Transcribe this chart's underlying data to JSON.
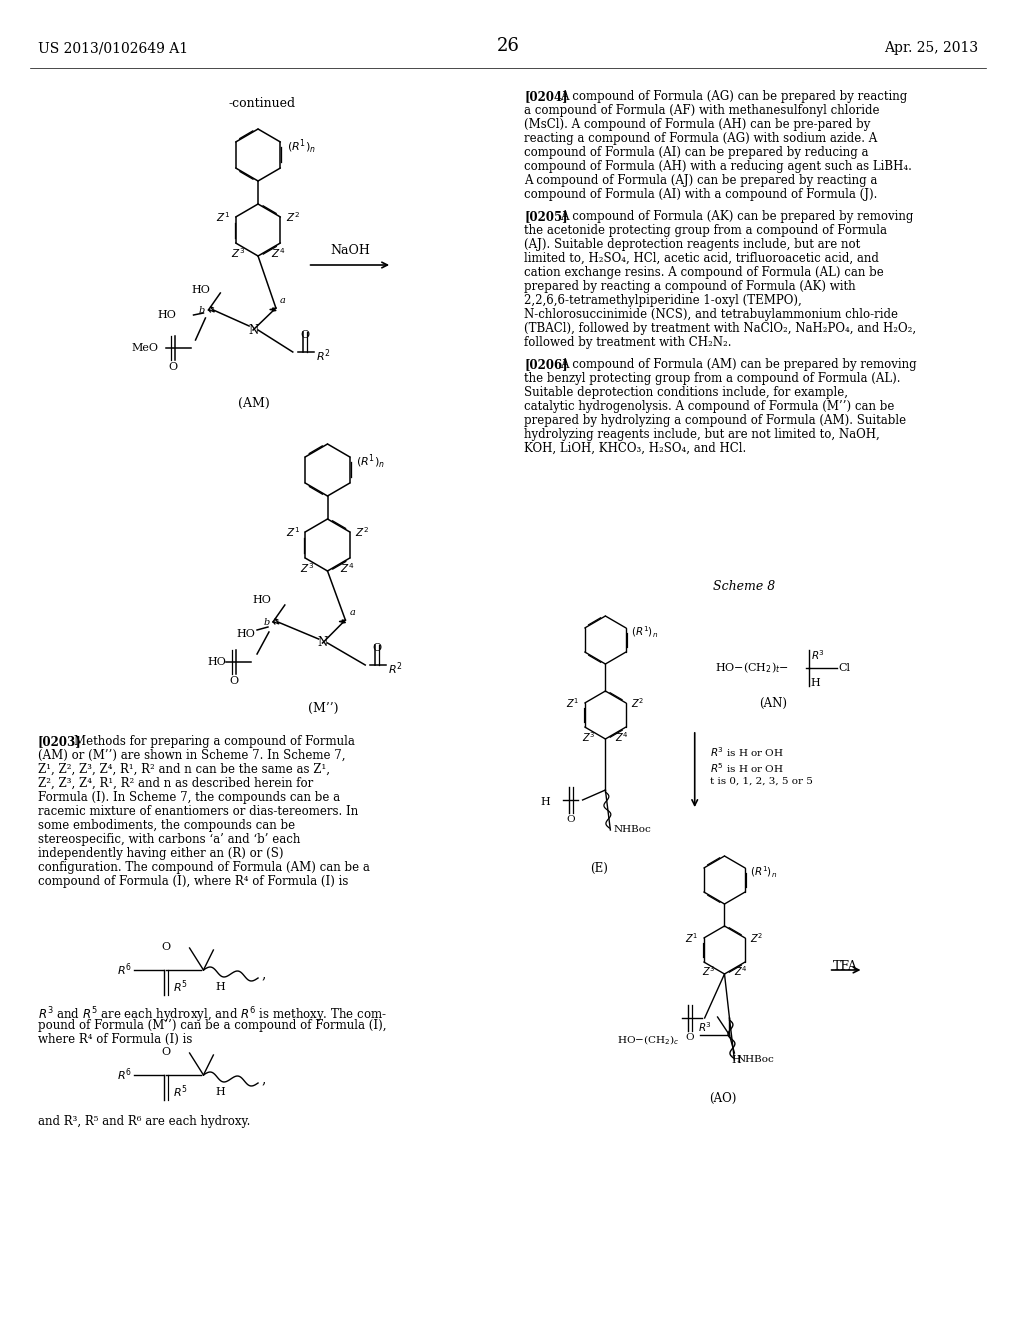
{
  "background_color": "#ffffff",
  "header_left": "US 2013/0102649 A1",
  "header_right": "Apr. 25, 2013",
  "page_number": "26",
  "continued_label": "-continued",
  "naoh_label": "NaOH",
  "am_label": "(AM)",
  "mprime_label": "(M’’)",
  "scheme8_label": "Scheme 8",
  "an_label": "(AN)",
  "e_label": "(E)",
  "ao_label": "(AO)",
  "tfa_label": "TFA",
  "para_0204": "[0204] A compound of Formula (AG) can be prepared by reacting a compound of Formula (AF) with methanesulfonyl chloride (MsCl). A compound of Formula (AH) can be pre-pared by reacting a compound of Formula (AG) with sodium azide. A compound of Formula (AI) can be prepared by reducing a compound of Formula (AH) with a reducing agent such as LiBH₄. A compound of Formula (AJ) can be prepared by reacting a compound of Formula (AI) with a compound of Formula (J).",
  "para_0205": "[0205] A compound of Formula (AK) can be prepared by removing the acetonide protecting group from a compound of Formula (AJ). Suitable deprotection reagents include, but are not limited to, H₂SO₄, HCl, acetic acid, trifluoroacetic acid, and cation exchange resins. A compound of Formula (AL) can be prepared by reacting a compound of Formula (AK) with  2,2,6,6-tetramethylpiperidine  1-oxyl  (TEMPO), N-chlorosuccinimide (NCS), and tetrabuylammonium chlo-ride (TBACl), followed by treatment with NaClO₂, NaH₂PO₄, and H₂O₂, followed by treatment with CH₂N₂.",
  "para_0206": "[0206] A compound of Formula (AM) can be prepared by removing the benzyl protecting group from a compound of Formula (AL). Suitable deprotection conditions include, for example, catalytic hydrogenolysis. A compound of Formula (M”) can be prepared by hydrolyzing a compound of Formula (AM). Suitable hydrolyzing reagents include, but are not limited to, NaOH, KOH, LiOH, KHCO₃, H₂SO₄, and HCl.",
  "para_0203": "[0203] Methods for preparing a compound of Formula (AM) or (M’’) are shown in Scheme 7. In Scheme 7, Z¹, Z², Z³, Z⁴, R¹, R² and n can be the same as Z¹, Z², Z³, Z⁴, R¹, R² and n as described herein for Formula (I). In Scheme 7, the compounds can be a racemic mixture of enantiomers or diastereomers. In some embodiments, the compounds can be stereospecific, with carbons ‘a’ and ‘b’ each independently having either an (R) or (S) configuration. The compound of Formula (AM) can be a compound of Formula (I), where R⁴ of Formula (I) is",
  "text_r3r5_1": "R³ and R⁵ are each hydroxyl, and R⁶ is methoxy. The com-\npound of Formula (M’’) can be a compound of Formula (I),\nwhere R⁴ of Formula (I) is",
  "text_r3r5_2": "and R³, R⁵ and R⁶ are each hydroxy.",
  "an_conditions": "R³ is H or OH\nR⁵ is H or OH\nt is 0, 1, 2, 3, 5 or 5"
}
